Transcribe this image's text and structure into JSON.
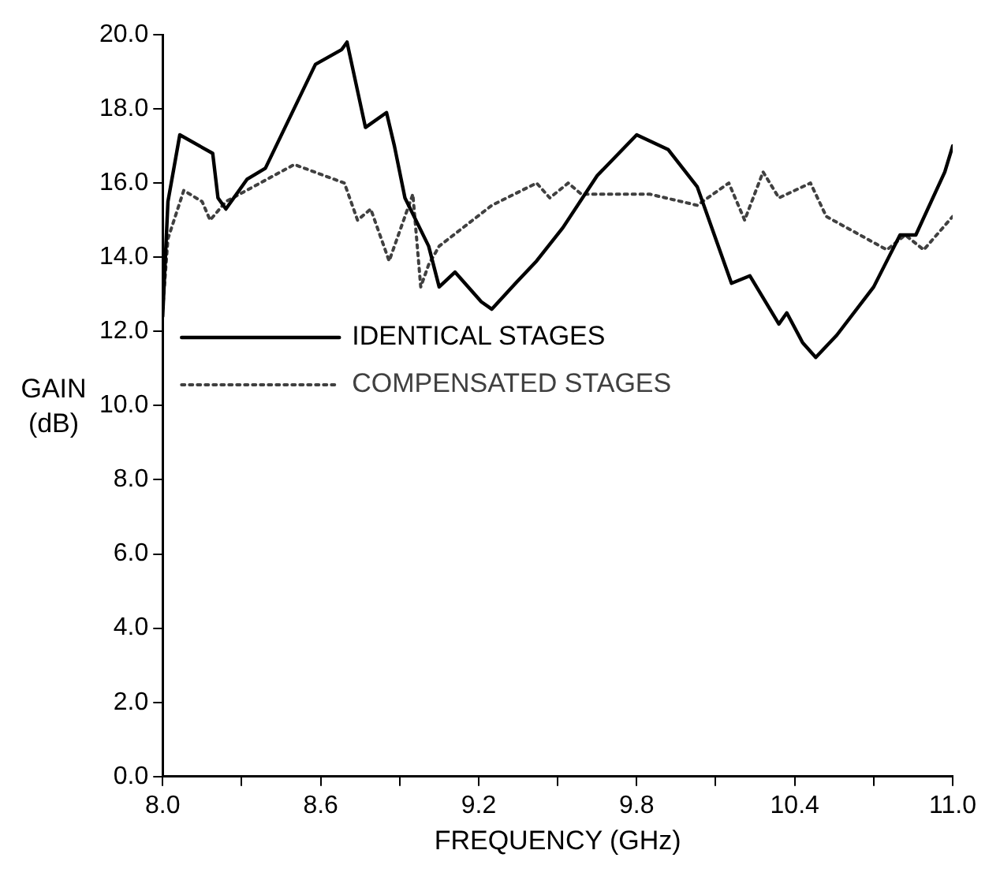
{
  "chart_data": {
    "type": "line",
    "xlabel": "FREQUENCY (GHz)",
    "ylabel": "GAIN (dB)",
    "xlim": [
      8.0,
      11.0
    ],
    "ylim": [
      0,
      20
    ],
    "xticks": [
      {
        "value": 8.0,
        "label": "8.0"
      },
      {
        "value": 8.3,
        "label": null
      },
      {
        "value": 8.6,
        "label": "8.6"
      },
      {
        "value": 8.9,
        "label": null
      },
      {
        "value": 9.2,
        "label": "9.2"
      },
      {
        "value": 9.5,
        "label": null
      },
      {
        "value": 9.8,
        "label": "9.8"
      },
      {
        "value": 10.1,
        "label": null
      },
      {
        "value": 10.4,
        "label": "10.4"
      },
      {
        "value": 10.7,
        "label": null
      },
      {
        "value": 11.0,
        "label": "11.0"
      }
    ],
    "yticks": [
      {
        "value": 0,
        "label": "0.0"
      },
      {
        "value": 2,
        "label": "2.0"
      },
      {
        "value": 4,
        "label": "4.0"
      },
      {
        "value": 6,
        "label": "6.0"
      },
      {
        "value": 8,
        "label": "8.0"
      },
      {
        "value": 10,
        "label": "10.0"
      },
      {
        "value": 12,
        "label": "12.0"
      },
      {
        "value": 14,
        "label": "14.0"
      },
      {
        "value": 16,
        "label": "16.0"
      },
      {
        "value": 18,
        "label": "18.0"
      },
      {
        "value": 20,
        "label": "20.0"
      }
    ],
    "grid": false,
    "legend": "left",
    "marker": "none",
    "series": [
      {
        "name": "IDENTICAL STAGES",
        "color": "#000000",
        "line_style": "solid",
        "x": [
          8.0,
          8.02,
          8.065,
          8.19,
          8.21,
          8.24,
          8.32,
          8.39,
          8.58,
          8.68,
          8.7,
          8.77,
          8.85,
          8.88,
          8.92,
          9.01,
          9.05,
          9.11,
          9.21,
          9.25,
          9.34,
          9.42,
          9.52,
          9.65,
          9.8,
          9.92,
          10.03,
          10.16,
          10.23,
          10.34,
          10.37,
          10.43,
          10.48,
          10.56,
          10.7,
          10.8,
          10.86,
          10.97,
          11.0
        ],
        "values": [
          12.4,
          15.5,
          17.3,
          16.8,
          15.6,
          15.3,
          16.1,
          16.4,
          19.2,
          19.6,
          19.8,
          17.5,
          17.9,
          17.0,
          15.6,
          14.3,
          13.2,
          13.6,
          12.8,
          12.6,
          13.3,
          13.9,
          14.8,
          16.2,
          17.3,
          16.9,
          15.9,
          13.3,
          13.5,
          12.2,
          12.5,
          11.7,
          11.3,
          11.9,
          13.2,
          14.6,
          14.6,
          16.3,
          17.0
        ]
      },
      {
        "name": "COMPENSATED STAGES",
        "color": "#404040",
        "line_style": "dotted",
        "x": [
          8.0,
          8.02,
          8.08,
          8.15,
          8.18,
          8.24,
          8.5,
          8.69,
          8.74,
          8.79,
          8.86,
          8.95,
          8.98,
          9.01,
          9.05,
          9.25,
          9.42,
          9.47,
          9.54,
          9.59,
          9.85,
          10.03,
          10.15,
          10.21,
          10.28,
          10.34,
          10.46,
          10.52,
          10.75,
          10.82,
          10.89,
          11.0
        ],
        "values": [
          12.6,
          14.5,
          15.8,
          15.5,
          15.0,
          15.5,
          16.5,
          16.0,
          15.0,
          15.3,
          13.9,
          15.7,
          13.2,
          13.8,
          14.3,
          15.4,
          16.0,
          15.6,
          16.0,
          15.7,
          15.7,
          15.4,
          16.0,
          15.0,
          16.3,
          15.6,
          16.0,
          15.1,
          14.2,
          14.6,
          14.2,
          15.1
        ]
      }
    ]
  }
}
